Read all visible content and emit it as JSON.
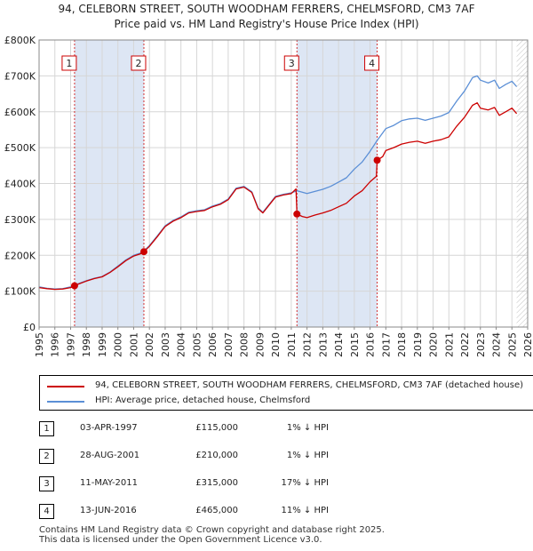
{
  "title_line1": "94, CELEBORN STREET, SOUTH WOODHAM FERRERS, CHELMSFORD, CM3 7AF",
  "title_line2": "Price paid vs. HM Land Registry's House Price Index (HPI)",
  "colors": {
    "property": "#cc0000",
    "hpi": "#5b8fd6",
    "shade": "#dde6f4"
  },
  "chart_data": {
    "type": "line",
    "title": "Price paid vs. HM Land Registry's House Price Index (HPI)",
    "xlabel": "",
    "ylabel": "",
    "xlim": [
      1995,
      2026
    ],
    "ylim": [
      0,
      800000
    ],
    "x_ticks": [
      "1995",
      "1996",
      "1997",
      "1998",
      "1999",
      "2000",
      "2001",
      "2002",
      "2003",
      "2004",
      "2005",
      "2006",
      "2007",
      "2008",
      "2009",
      "2010",
      "2011",
      "2012",
      "2013",
      "2014",
      "2015",
      "2016",
      "2017",
      "2018",
      "2019",
      "2020",
      "2021",
      "2022",
      "2023",
      "2024",
      "2025",
      "2026"
    ],
    "y_ticks": [
      {
        "value": 0,
        "label": "£0"
      },
      {
        "value": 100000,
        "label": "£100K"
      },
      {
        "value": 200000,
        "label": "£200K"
      },
      {
        "value": 300000,
        "label": "£300K"
      },
      {
        "value": 400000,
        "label": "£400K"
      },
      {
        "value": 500000,
        "label": "£500K"
      },
      {
        "value": 600000,
        "label": "£600K"
      },
      {
        "value": 700000,
        "label": "£700K"
      },
      {
        "value": 800000,
        "label": "£800K"
      }
    ],
    "shaded_ranges": [
      [
        1997.25,
        2001.65
      ],
      [
        2011.36,
        2016.45
      ]
    ],
    "data_end": 2025.3,
    "series": [
      {
        "name": "94, CELEBORN STREET, SOUTH WOODHAM FERRERS, CHELMSFORD, CM3 7AF (detached house)",
        "color": "#cc0000",
        "points": [
          [
            1995.0,
            110000
          ],
          [
            1995.5,
            107000
          ],
          [
            1996.0,
            105000
          ],
          [
            1996.5,
            106000
          ],
          [
            1997.0,
            110000
          ],
          [
            1997.25,
            115000
          ],
          [
            1997.5,
            120000
          ],
          [
            1998.0,
            128000
          ],
          [
            1998.5,
            135000
          ],
          [
            1999.0,
            140000
          ],
          [
            1999.5,
            152000
          ],
          [
            2000.0,
            168000
          ],
          [
            2000.5,
            185000
          ],
          [
            2001.0,
            198000
          ],
          [
            2001.5,
            205000
          ],
          [
            2001.65,
            210000
          ],
          [
            2002.0,
            225000
          ],
          [
            2002.5,
            252000
          ],
          [
            2003.0,
            280000
          ],
          [
            2003.5,
            295000
          ],
          [
            2004.0,
            305000
          ],
          [
            2004.5,
            318000
          ],
          [
            2005.0,
            322000
          ],
          [
            2005.5,
            325000
          ],
          [
            2006.0,
            335000
          ],
          [
            2006.5,
            342000
          ],
          [
            2007.0,
            355000
          ],
          [
            2007.5,
            385000
          ],
          [
            2008.0,
            390000
          ],
          [
            2008.5,
            375000
          ],
          [
            2008.9,
            330000
          ],
          [
            2009.2,
            318000
          ],
          [
            2009.6,
            340000
          ],
          [
            2010.0,
            362000
          ],
          [
            2010.5,
            368000
          ],
          [
            2011.0,
            372000
          ],
          [
            2011.3,
            385000
          ],
          [
            2011.36,
            315000
          ],
          [
            2011.7,
            308000
          ],
          [
            2012.0,
            305000
          ],
          [
            2012.5,
            312000
          ],
          [
            2013.0,
            318000
          ],
          [
            2013.5,
            325000
          ],
          [
            2014.0,
            335000
          ],
          [
            2014.5,
            345000
          ],
          [
            2015.0,
            365000
          ],
          [
            2015.5,
            380000
          ],
          [
            2016.0,
            405000
          ],
          [
            2016.4,
            420000
          ],
          [
            2016.45,
            465000
          ],
          [
            2016.8,
            475000
          ],
          [
            2017.0,
            492000
          ],
          [
            2017.5,
            500000
          ],
          [
            2018.0,
            510000
          ],
          [
            2018.5,
            515000
          ],
          [
            2019.0,
            518000
          ],
          [
            2019.5,
            512000
          ],
          [
            2020.0,
            518000
          ],
          [
            2020.5,
            522000
          ],
          [
            2021.0,
            530000
          ],
          [
            2021.5,
            560000
          ],
          [
            2022.0,
            585000
          ],
          [
            2022.5,
            618000
          ],
          [
            2022.8,
            625000
          ],
          [
            2023.0,
            610000
          ],
          [
            2023.5,
            605000
          ],
          [
            2023.9,
            612000
          ],
          [
            2024.2,
            590000
          ],
          [
            2024.6,
            600000
          ],
          [
            2025.0,
            610000
          ],
          [
            2025.3,
            595000
          ]
        ]
      },
      {
        "name": "HPI: Average price, detached house, Chelmsford",
        "color": "#5b8fd6",
        "points": [
          [
            1995.0,
            112000
          ],
          [
            1995.5,
            108000
          ],
          [
            1996.0,
            106000
          ],
          [
            1996.5,
            107000
          ],
          [
            1997.0,
            112000
          ],
          [
            1997.25,
            116000
          ],
          [
            1997.5,
            121000
          ],
          [
            1998.0,
            129000
          ],
          [
            1998.5,
            136000
          ],
          [
            1999.0,
            141000
          ],
          [
            1999.5,
            153000
          ],
          [
            2000.0,
            170000
          ],
          [
            2000.5,
            187000
          ],
          [
            2001.0,
            200000
          ],
          [
            2001.5,
            207000
          ],
          [
            2001.65,
            212000
          ],
          [
            2002.0,
            227000
          ],
          [
            2002.5,
            254000
          ],
          [
            2003.0,
            282000
          ],
          [
            2003.5,
            297000
          ],
          [
            2004.0,
            307000
          ],
          [
            2004.5,
            320000
          ],
          [
            2005.0,
            324000
          ],
          [
            2005.5,
            327000
          ],
          [
            2006.0,
            337000
          ],
          [
            2006.5,
            344000
          ],
          [
            2007.0,
            357000
          ],
          [
            2007.5,
            387000
          ],
          [
            2008.0,
            392000
          ],
          [
            2008.5,
            377000
          ],
          [
            2008.9,
            332000
          ],
          [
            2009.2,
            320000
          ],
          [
            2009.6,
            342000
          ],
          [
            2010.0,
            364000
          ],
          [
            2010.5,
            370000
          ],
          [
            2011.0,
            374000
          ],
          [
            2011.36,
            380000
          ],
          [
            2012.0,
            372000
          ],
          [
            2012.5,
            378000
          ],
          [
            2013.0,
            384000
          ],
          [
            2013.5,
            392000
          ],
          [
            2014.0,
            404000
          ],
          [
            2014.5,
            416000
          ],
          [
            2015.0,
            440000
          ],
          [
            2015.5,
            460000
          ],
          [
            2016.0,
            490000
          ],
          [
            2016.45,
            520000
          ],
          [
            2017.0,
            553000
          ],
          [
            2017.5,
            562000
          ],
          [
            2018.0,
            575000
          ],
          [
            2018.5,
            580000
          ],
          [
            2019.0,
            582000
          ],
          [
            2019.5,
            576000
          ],
          [
            2020.0,
            582000
          ],
          [
            2020.5,
            588000
          ],
          [
            2021.0,
            598000
          ],
          [
            2021.5,
            630000
          ],
          [
            2022.0,
            658000
          ],
          [
            2022.5,
            695000
          ],
          [
            2022.8,
            700000
          ],
          [
            2023.0,
            688000
          ],
          [
            2023.5,
            680000
          ],
          [
            2023.9,
            688000
          ],
          [
            2024.2,
            665000
          ],
          [
            2024.6,
            676000
          ],
          [
            2025.0,
            685000
          ],
          [
            2025.3,
            670000
          ]
        ]
      }
    ],
    "sales": [
      {
        "label": "1",
        "x": 1997.25,
        "y": 115000
      },
      {
        "label": "2",
        "x": 2001.65,
        "y": 210000
      },
      {
        "label": "3",
        "x": 2011.36,
        "y": 315000
      },
      {
        "label": "4",
        "x": 2016.45,
        "y": 465000
      }
    ]
  },
  "legend": {
    "property_label": "94, CELEBORN STREET, SOUTH WOODHAM FERRERS, CHELMSFORD, CM3 7AF (detached house)",
    "hpi_label": "HPI: Average price, detached house, Chelmsford"
  },
  "sales_table": [
    {
      "num": "1",
      "date": "03-APR-1997",
      "price": "£115,000",
      "hpi": "1% ↓ HPI"
    },
    {
      "num": "2",
      "date": "28-AUG-2001",
      "price": "£210,000",
      "hpi": "1% ↓ HPI"
    },
    {
      "num": "3",
      "date": "11-MAY-2011",
      "price": "£315,000",
      "hpi": "17% ↓ HPI"
    },
    {
      "num": "4",
      "date": "13-JUN-2016",
      "price": "£465,000",
      "hpi": "11% ↓ HPI"
    }
  ],
  "footer": {
    "line1": "Contains HM Land Registry data © Crown copyright and database right 2025.",
    "line2": "This data is licensed under the Open Government Licence v3.0."
  }
}
